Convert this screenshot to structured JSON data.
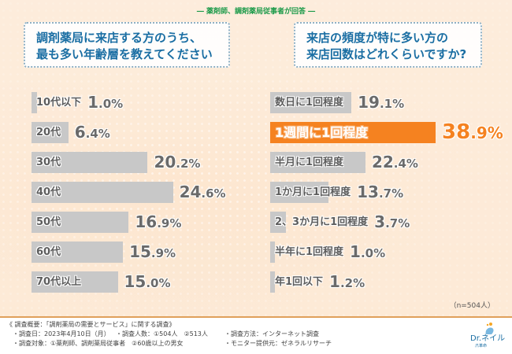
{
  "subtitle": "― 薬剤師、調剤薬局従事者が回答 ―",
  "questions": {
    "left": [
      "調剤薬局に来店する方のうち、",
      "最も多い年齢層を教えてください"
    ],
    "right": [
      "来店の頻度が特に多い方の",
      "来店回数はどれくらいですか?"
    ]
  },
  "colors": {
    "bar_default": "#c8c8c8",
    "bar_highlight": "#f58220",
    "question_text": "#1a6ea3",
    "subtitle_text": "#1d9a4a"
  },
  "chart_data": [
    {
      "type": "bar",
      "orientation": "horizontal",
      "title": "調剤薬局に来店する方のうち、最も多い年齢層を教えてください",
      "categories": [
        "10代以下",
        "20代",
        "30代",
        "40代",
        "50代",
        "60代",
        "70代以上"
      ],
      "values": [
        1.0,
        6.4,
        20.2,
        24.6,
        16.9,
        15.9,
        15.0
      ],
      "unit": "%",
      "highlight": [],
      "xlim": [
        0,
        30
      ]
    },
    {
      "type": "bar",
      "orientation": "horizontal",
      "title": "来店の頻度が特に多い方の来店回数はどれくらいですか?",
      "categories": [
        "数日に1回程度",
        "1週間に1回程度",
        "半月に1回程度",
        "1か月に1回程度",
        "2、3か月に1回程度",
        "半年に1回程度",
        "年1回以下"
      ],
      "values": [
        19.1,
        38.9,
        22.4,
        13.7,
        3.7,
        1.0,
        1.2
      ],
      "unit": "%",
      "highlight": [
        1
      ],
      "xlim": [
        0,
        45
      ]
    }
  ],
  "sample_note": "（n=504人）",
  "footer": {
    "heading": "《 調査概要：「調剤薬局の需要とサービス」に関する調査》",
    "rows": [
      [
        "・調査日：2023年4月10日（月）",
        "・調査人数：①504人　②513人",
        "・調査方法：インターネット調査"
      ],
      [
        "・調査対象：①薬剤師、調剤薬局従事者　②60歳以上の男女",
        "",
        "・モニター提供元：ゼネラルリサーチ"
      ]
    ]
  },
  "logo": {
    "name": "Dr.ネイル",
    "sub": "爪革命"
  }
}
